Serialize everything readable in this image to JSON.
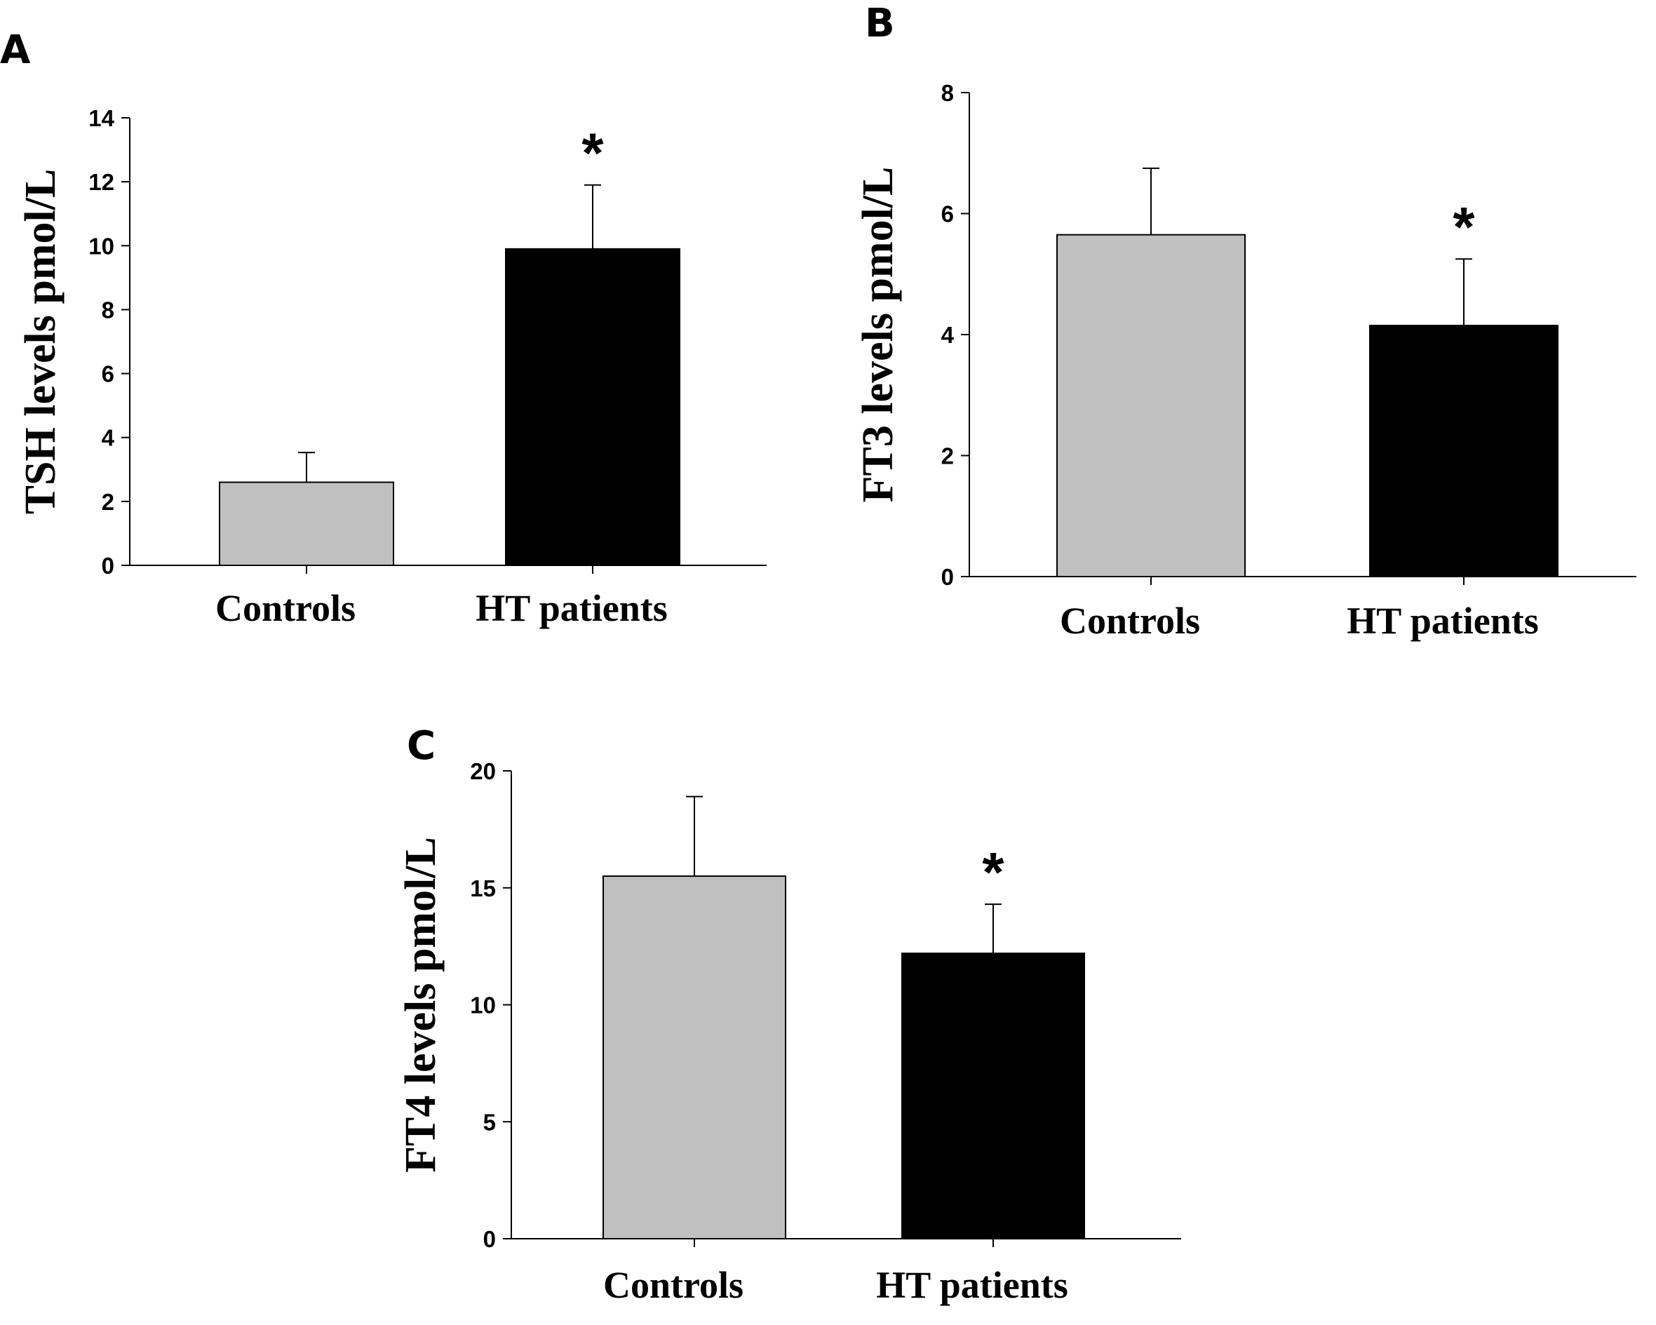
{
  "chart_data": [
    {
      "panel": "A",
      "type": "bar",
      "categories": [
        "Controls",
        "HT patients"
      ],
      "values": [
        2.6,
        9.9
      ],
      "errors": [
        0.93,
        2.0
      ],
      "significance": [
        "",
        "*"
      ],
      "bar_colors": [
        "#c0c0c0",
        "#000000"
      ],
      "xlabel": "",
      "ylabel": "TSH levels pmol/L",
      "ylim": [
        0,
        14
      ],
      "yticks": [
        0,
        2,
        4,
        6,
        8,
        10,
        12,
        14
      ],
      "grid": false
    },
    {
      "panel": "B",
      "type": "bar",
      "categories": [
        "Controls",
        "HT patients"
      ],
      "values": [
        5.65,
        4.15
      ],
      "errors": [
        1.1,
        1.1
      ],
      "significance": [
        "",
        "*"
      ],
      "bar_colors": [
        "#c0c0c0",
        "#000000"
      ],
      "xlabel": "",
      "ylabel": "FT3 levels pmol/L",
      "ylim": [
        0,
        8
      ],
      "yticks": [
        0,
        2,
        4,
        6,
        8
      ],
      "grid": false
    },
    {
      "panel": "C",
      "type": "bar",
      "categories": [
        "Controls",
        "HT patients"
      ],
      "values": [
        15.5,
        12.2
      ],
      "errors": [
        3.4,
        2.1
      ],
      "significance": [
        "",
        "*"
      ],
      "bar_colors": [
        "#c0c0c0",
        "#000000"
      ],
      "xlabel": "",
      "ylabel": "FT4 levels pmol/L",
      "ylim": [
        0,
        20
      ],
      "yticks": [
        0,
        5,
        10,
        15,
        20
      ],
      "grid": false
    }
  ]
}
